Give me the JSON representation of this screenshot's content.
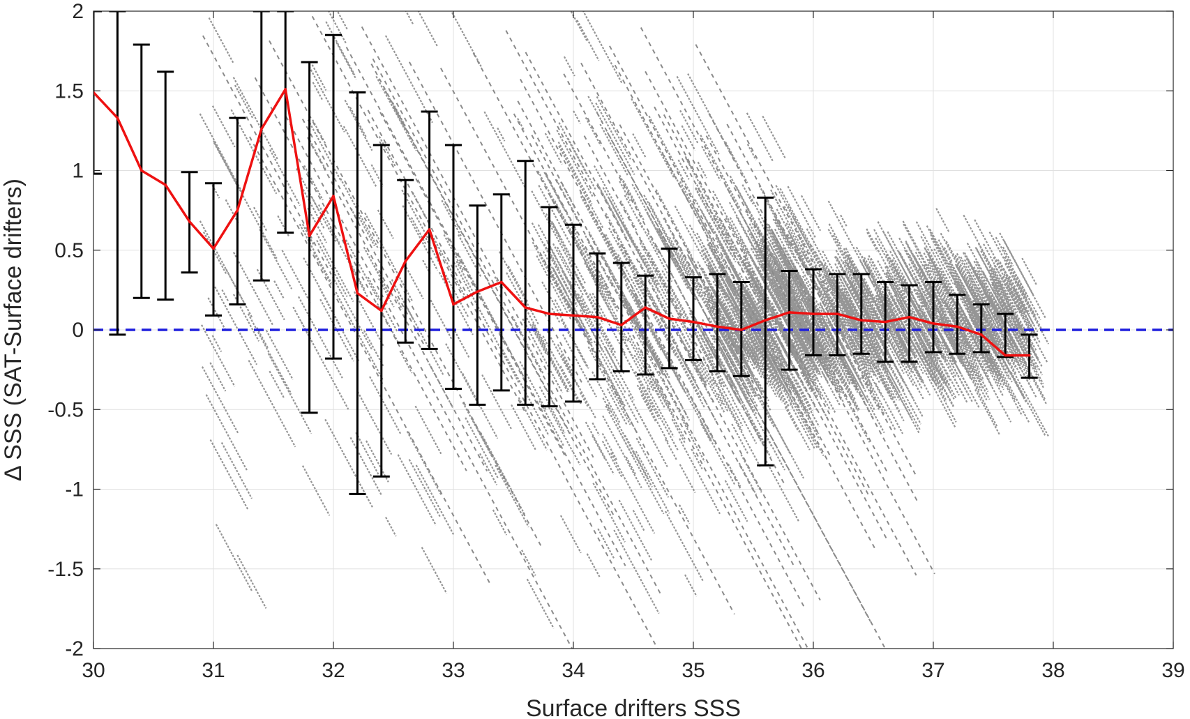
{
  "chart_data": {
    "type": "line",
    "title": "",
    "xlabel": "Surface drifters SSS",
    "ylabel": "Δ SSS (SAT-Surface drifters)",
    "xlim": [
      30,
      39
    ],
    "ylim": [
      -2,
      2
    ],
    "xticks": [
      "30",
      "31",
      "32",
      "33",
      "34",
      "35",
      "36",
      "37",
      "38",
      "39"
    ],
    "yticks": [
      "-2",
      "-1.5",
      "-1",
      "-0.5",
      "0",
      "0.5",
      "1",
      "1.5",
      "2"
    ],
    "grid": true,
    "reference_line": {
      "y": 0,
      "style": "dashed",
      "color": "#1f1fdd"
    },
    "colors": {
      "mean_line": "#ee1111",
      "error_bars": "#000000",
      "scatter": "#8a8a8a",
      "grid": "#e0e0e0"
    },
    "series": [
      {
        "style": "red line with black error bars",
        "x": [
          30.0,
          30.2,
          30.4,
          30.6,
          30.8,
          31.0,
          31.2,
          31.4,
          31.6,
          31.8,
          32.0,
          32.2,
          32.4,
          32.6,
          32.8,
          33.0,
          33.2,
          33.4,
          33.6,
          33.8,
          34.0,
          34.2,
          34.4,
          34.6,
          34.8,
          35.0,
          35.2,
          35.4,
          35.6,
          35.8,
          36.0,
          36.2,
          36.4,
          36.6,
          36.8,
          37.0,
          37.2,
          37.4,
          37.6,
          37.8
        ],
        "y": [
          1.49,
          1.33,
          1.0,
          0.91,
          0.68,
          0.51,
          0.75,
          1.26,
          1.51,
          0.59,
          0.84,
          0.23,
          0.12,
          0.43,
          0.63,
          0.16,
          0.24,
          0.3,
          0.14,
          0.1,
          0.09,
          0.08,
          0.03,
          0.14,
          0.07,
          0.05,
          0.02,
          0.0,
          0.06,
          0.11,
          0.1,
          0.1,
          0.06,
          0.05,
          0.08,
          0.04,
          0.02,
          -0.03,
          -0.16,
          -0.16
        ],
        "err_low": [
          0.98,
          -0.03,
          0.2,
          0.19,
          0.36,
          0.09,
          0.16,
          0.31,
          0.61,
          -0.52,
          -0.18,
          -1.03,
          -0.92,
          -0.08,
          -0.12,
          -0.37,
          -0.47,
          -0.38,
          -0.47,
          -0.48,
          -0.45,
          -0.31,
          -0.26,
          -0.28,
          -0.24,
          -0.19,
          -0.26,
          -0.29,
          -0.85,
          -0.25,
          -0.16,
          -0.16,
          -0.15,
          -0.2,
          -0.2,
          -0.14,
          -0.15,
          -0.14,
          -0.17,
          -0.3
        ],
        "err_high": [
          2.0,
          2.0,
          1.79,
          1.62,
          0.99,
          0.92,
          1.33,
          2.0,
          2.0,
          1.68,
          1.85,
          1.49,
          1.16,
          0.94,
          1.37,
          1.16,
          0.78,
          0.85,
          1.06,
          0.77,
          0.66,
          0.48,
          0.42,
          0.34,
          0.51,
          0.33,
          0.35,
          0.3,
          0.83,
          0.37,
          0.38,
          0.35,
          0.35,
          0.3,
          0.28,
          0.3,
          0.22,
          0.16,
          0.1,
          -0.03
        ]
      }
    ]
  }
}
